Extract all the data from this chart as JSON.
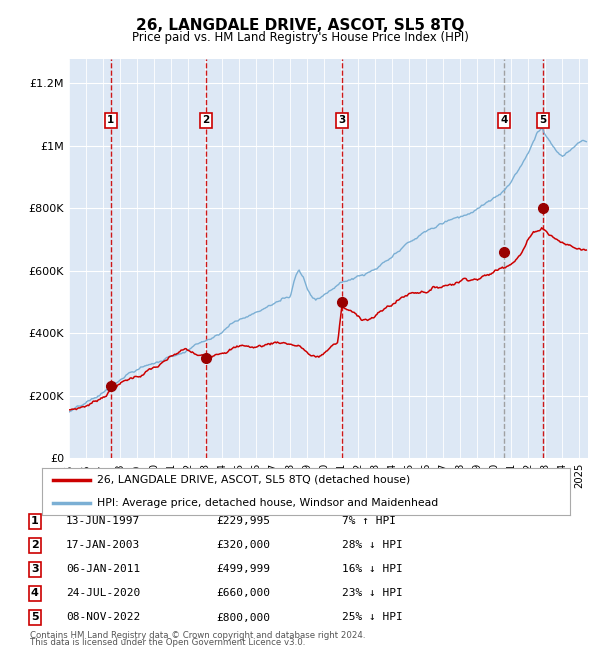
{
  "title": "26, LANGDALE DRIVE, ASCOT, SL5 8TQ",
  "subtitle": "Price paid vs. HM Land Registry's House Price Index (HPI)",
  "footer1": "Contains HM Land Registry data © Crown copyright and database right 2024.",
  "footer2": "This data is licensed under the Open Government Licence v3.0.",
  "legend_label_red": "26, LANGDALE DRIVE, ASCOT, SL5 8TQ (detached house)",
  "legend_label_blue": "HPI: Average price, detached house, Windsor and Maidenhead",
  "sale_labels": [
    "1",
    "2",
    "3",
    "4",
    "5"
  ],
  "sale_dates_x": [
    1997.45,
    2003.05,
    2011.02,
    2020.56,
    2022.86
  ],
  "sale_prices_y": [
    229995,
    320000,
    499999,
    660000,
    800000
  ],
  "sale_table": [
    [
      "1",
      "13-JUN-1997",
      "£229,995",
      "7% ↑ HPI"
    ],
    [
      "2",
      "17-JAN-2003",
      "£320,000",
      "28% ↓ HPI"
    ],
    [
      "3",
      "06-JAN-2011",
      "£499,999",
      "16% ↓ HPI"
    ],
    [
      "4",
      "24-JUL-2020",
      "£660,000",
      "23% ↓ HPI"
    ],
    [
      "5",
      "08-NOV-2022",
      "£800,000",
      "25% ↓ HPI"
    ]
  ],
  "sale_vline_colors": [
    "#cc0000",
    "#cc0000",
    "#cc0000",
    "#999999",
    "#cc0000"
  ],
  "xmin": 1995.0,
  "xmax": 2025.5,
  "ymin": 0,
  "ymax": 1280000,
  "yticks": [
    0,
    200000,
    400000,
    600000,
    800000,
    1000000,
    1200000
  ],
  "ytick_labels": [
    "£0",
    "£200K",
    "£400K",
    "£600K",
    "£800K",
    "£1M",
    "£1.2M"
  ],
  "plot_bg_color": "#dde8f5",
  "red_line_color": "#cc0000",
  "blue_line_color": "#7bafd4",
  "grid_color": "#ffffff",
  "marker_color": "#990000",
  "box_edge_color": "#cc0000",
  "red_key_x": [
    1995.0,
    1995.5,
    1996.0,
    1996.5,
    1997.0,
    1997.45,
    1997.8,
    1998.2,
    1998.6,
    1999.0,
    1999.4,
    1999.8,
    2000.2,
    2000.6,
    2001.0,
    2001.4,
    2001.8,
    2002.2,
    2002.6,
    2003.05,
    2003.4,
    2003.8,
    2004.2,
    2004.6,
    2005.0,
    2005.4,
    2005.8,
    2006.2,
    2006.6,
    2007.0,
    2007.4,
    2007.8,
    2008.2,
    2008.6,
    2008.9,
    2009.2,
    2009.5,
    2009.8,
    2010.0,
    2010.4,
    2010.8,
    2011.02,
    2011.4,
    2011.8,
    2012.2,
    2012.6,
    2013.0,
    2013.4,
    2013.8,
    2014.2,
    2014.6,
    2015.0,
    2015.4,
    2015.8,
    2016.2,
    2016.6,
    2017.0,
    2017.4,
    2017.8,
    2018.2,
    2018.6,
    2019.0,
    2019.4,
    2019.8,
    2020.2,
    2020.56,
    2020.8,
    2021.2,
    2021.6,
    2021.8,
    2022.0,
    2022.4,
    2022.86,
    2023.2,
    2023.6,
    2024.0,
    2024.4,
    2024.8,
    2025.2
  ],
  "red_key_y": [
    155000,
    162000,
    172000,
    185000,
    205000,
    229995,
    245000,
    255000,
    265000,
    275000,
    285000,
    298000,
    305000,
    315000,
    328000,
    340000,
    348000,
    338000,
    325000,
    320000,
    330000,
    345000,
    358000,
    368000,
    370000,
    375000,
    368000,
    372000,
    378000,
    385000,
    390000,
    388000,
    385000,
    378000,
    365000,
    348000,
    340000,
    345000,
    352000,
    378000,
    390000,
    499999,
    490000,
    475000,
    465000,
    468000,
    475000,
    490000,
    505000,
    520000,
    535000,
    548000,
    555000,
    562000,
    568000,
    575000,
    582000,
    590000,
    600000,
    612000,
    618000,
    622000,
    628000,
    635000,
    648000,
    660000,
    672000,
    695000,
    718000,
    740000,
    760000,
    785000,
    800000,
    785000,
    770000,
    758000,
    748000,
    740000,
    735000
  ],
  "blue_key_x": [
    1995.0,
    1995.5,
    1996.0,
    1996.5,
    1997.0,
    1997.5,
    1998.0,
    1998.5,
    1999.0,
    1999.5,
    2000.0,
    2000.5,
    2001.0,
    2001.5,
    2002.0,
    2002.5,
    2003.0,
    2003.5,
    2004.0,
    2004.5,
    2005.0,
    2005.5,
    2006.0,
    2006.5,
    2007.0,
    2007.5,
    2008.0,
    2008.3,
    2008.5,
    2008.8,
    2009.0,
    2009.2,
    2009.5,
    2009.8,
    2010.0,
    2010.3,
    2010.6,
    2011.0,
    2011.4,
    2011.8,
    2012.2,
    2012.6,
    2013.0,
    2013.5,
    2014.0,
    2014.5,
    2015.0,
    2015.5,
    2016.0,
    2016.5,
    2017.0,
    2017.5,
    2018.0,
    2018.5,
    2019.0,
    2019.5,
    2020.0,
    2020.3,
    2020.6,
    2021.0,
    2021.5,
    2022.0,
    2022.3,
    2022.5,
    2022.8,
    2023.0,
    2023.3,
    2023.6,
    2024.0,
    2024.4,
    2024.8,
    2025.2
  ],
  "blue_key_y": [
    148000,
    157000,
    168000,
    180000,
    198000,
    218000,
    238000,
    255000,
    270000,
    283000,
    292000,
    302000,
    315000,
    330000,
    348000,
    365000,
    380000,
    395000,
    415000,
    440000,
    455000,
    468000,
    480000,
    495000,
    508000,
    520000,
    535000,
    600000,
    625000,
    600000,
    565000,
    548000,
    535000,
    545000,
    555000,
    568000,
    580000,
    592000,
    600000,
    608000,
    614000,
    620000,
    628000,
    645000,
    660000,
    680000,
    700000,
    718000,
    735000,
    748000,
    762000,
    775000,
    788000,
    800000,
    815000,
    828000,
    845000,
    855000,
    865000,
    890000,
    940000,
    990000,
    1030000,
    1060000,
    1080000,
    1058000,
    1030000,
    1005000,
    985000,
    1000000,
    1020000,
    1040000
  ]
}
